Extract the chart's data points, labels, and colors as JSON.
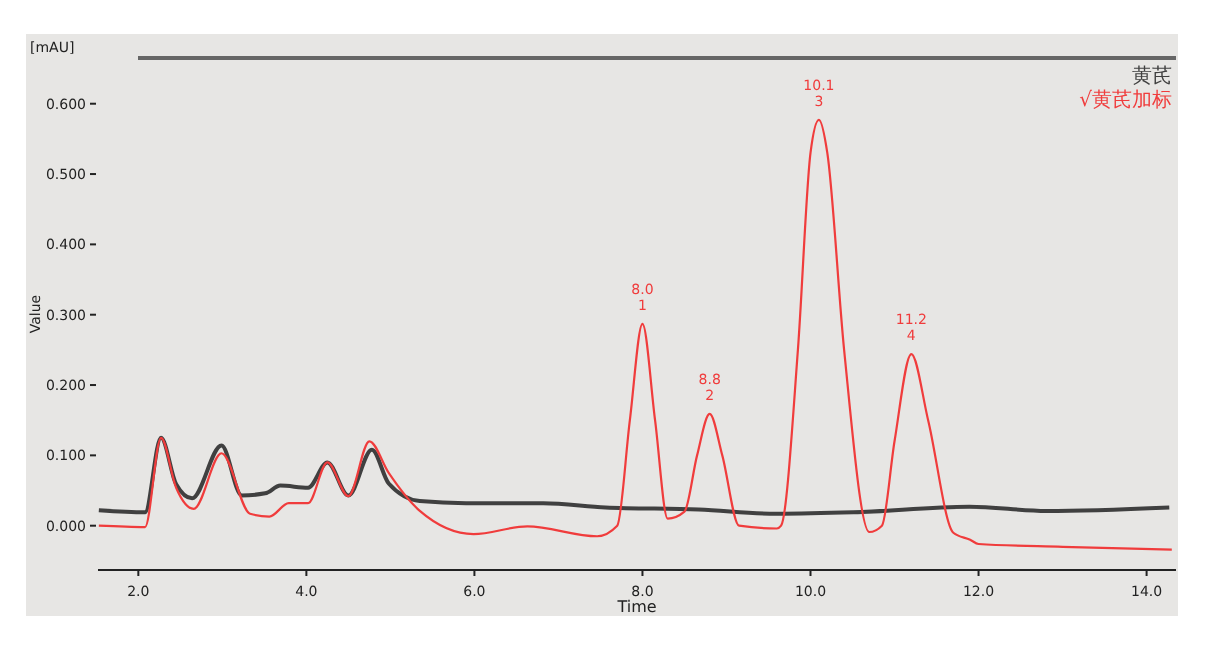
{
  "chart_data": {
    "type": "line",
    "xlabel": "Time",
    "ylabel": "Value",
    "annotations": [
      "[mAU]",
      {
        "text": "8.0\n1",
        "x": 8.0,
        "y": 0.287
      },
      {
        "text": "8.8\n2",
        "x": 8.8,
        "y": 0.159
      },
      {
        "text": "10.1\n3",
        "x": 10.1,
        "y": 0.577
      },
      {
        "text": "11.2\n4",
        "x": 11.2,
        "y": 0.244
      }
    ],
    "xlim": [
      1.52,
      14.35
    ],
    "ylim": [
      -0.063,
      0.665
    ],
    "xticks": [
      {
        "value": 2,
        "label": "2.0"
      },
      {
        "value": 4,
        "label": "4.0"
      },
      {
        "value": 6,
        "label": "6.0"
      },
      {
        "value": 8,
        "label": "8.0"
      },
      {
        "value": 10,
        "label": "10.0"
      },
      {
        "value": 12,
        "label": "12.0"
      },
      {
        "value": 14,
        "label": "14.0"
      }
    ],
    "yticks": [
      {
        "value": 0,
        "label": "0.000"
      },
      {
        "value": 0.1,
        "label": "0.100"
      },
      {
        "value": 0.2,
        "label": "0.200"
      },
      {
        "value": 0.3,
        "label": "0.300"
      },
      {
        "value": 0.4,
        "label": "0.400"
      },
      {
        "value": 0.5,
        "label": "0.500"
      },
      {
        "value": 0.6,
        "label": "0.600"
      }
    ],
    "legend": "top right",
    "grid": false,
    "marker": "none",
    "line_style": "solid",
    "series": [
      {
        "name": "黄芪",
        "color": "#404040",
        "x": [
          1.53,
          2.08,
          2.27,
          2.45,
          2.64,
          2.99,
          3.23,
          3.51,
          3.69,
          4.02,
          4.25,
          4.5,
          4.78,
          4.98,
          5.35,
          5.9,
          6.82,
          7.56,
          8.67,
          9.59,
          10.51,
          11.89,
          12.81,
          14.27
        ],
        "values": [
          0.022,
          0.019,
          0.125,
          0.059,
          0.039,
          0.114,
          0.043,
          0.046,
          0.057,
          0.054,
          0.09,
          0.043,
          0.108,
          0.06,
          0.035,
          0.032,
          0.032,
          0.026,
          0.023,
          0.017,
          0.019,
          0.027,
          0.021,
          0.026
        ]
      },
      {
        "name": "√黄芪加标",
        "color": "#f03c3c",
        "x": [
          1.53,
          2.08,
          2.27,
          2.45,
          2.66,
          2.99,
          3.33,
          3.56,
          3.79,
          4.02,
          4.25,
          4.5,
          4.75,
          4.98,
          5.35,
          5.99,
          6.63,
          7.46,
          7.7,
          7.85,
          8.0,
          8.15,
          8.3,
          8.5,
          8.65,
          8.8,
          8.95,
          9.15,
          9.6,
          9.65,
          9.85,
          10.0,
          10.1,
          10.2,
          10.4,
          10.7,
          10.85,
          11.0,
          11.2,
          11.4,
          11.7,
          11.9,
          12.0,
          13.0,
          14.3
        ],
        "values": [
          0.0,
          -0.002,
          0.125,
          0.054,
          0.024,
          0.103,
          0.017,
          0.013,
          0.032,
          0.032,
          0.09,
          0.042,
          0.12,
          0.075,
          0.021,
          -0.012,
          -0.001,
          -0.015,
          0.0,
          0.15,
          0.287,
          0.15,
          0.01,
          0.02,
          0.1,
          0.159,
          0.1,
          0.0,
          -0.004,
          0.0,
          0.25,
          0.53,
          0.577,
          0.53,
          0.25,
          -0.009,
          0.0,
          0.12,
          0.244,
          0.15,
          -0.01,
          -0.02,
          -0.026,
          -0.03,
          -0.034
        ]
      }
    ]
  }
}
